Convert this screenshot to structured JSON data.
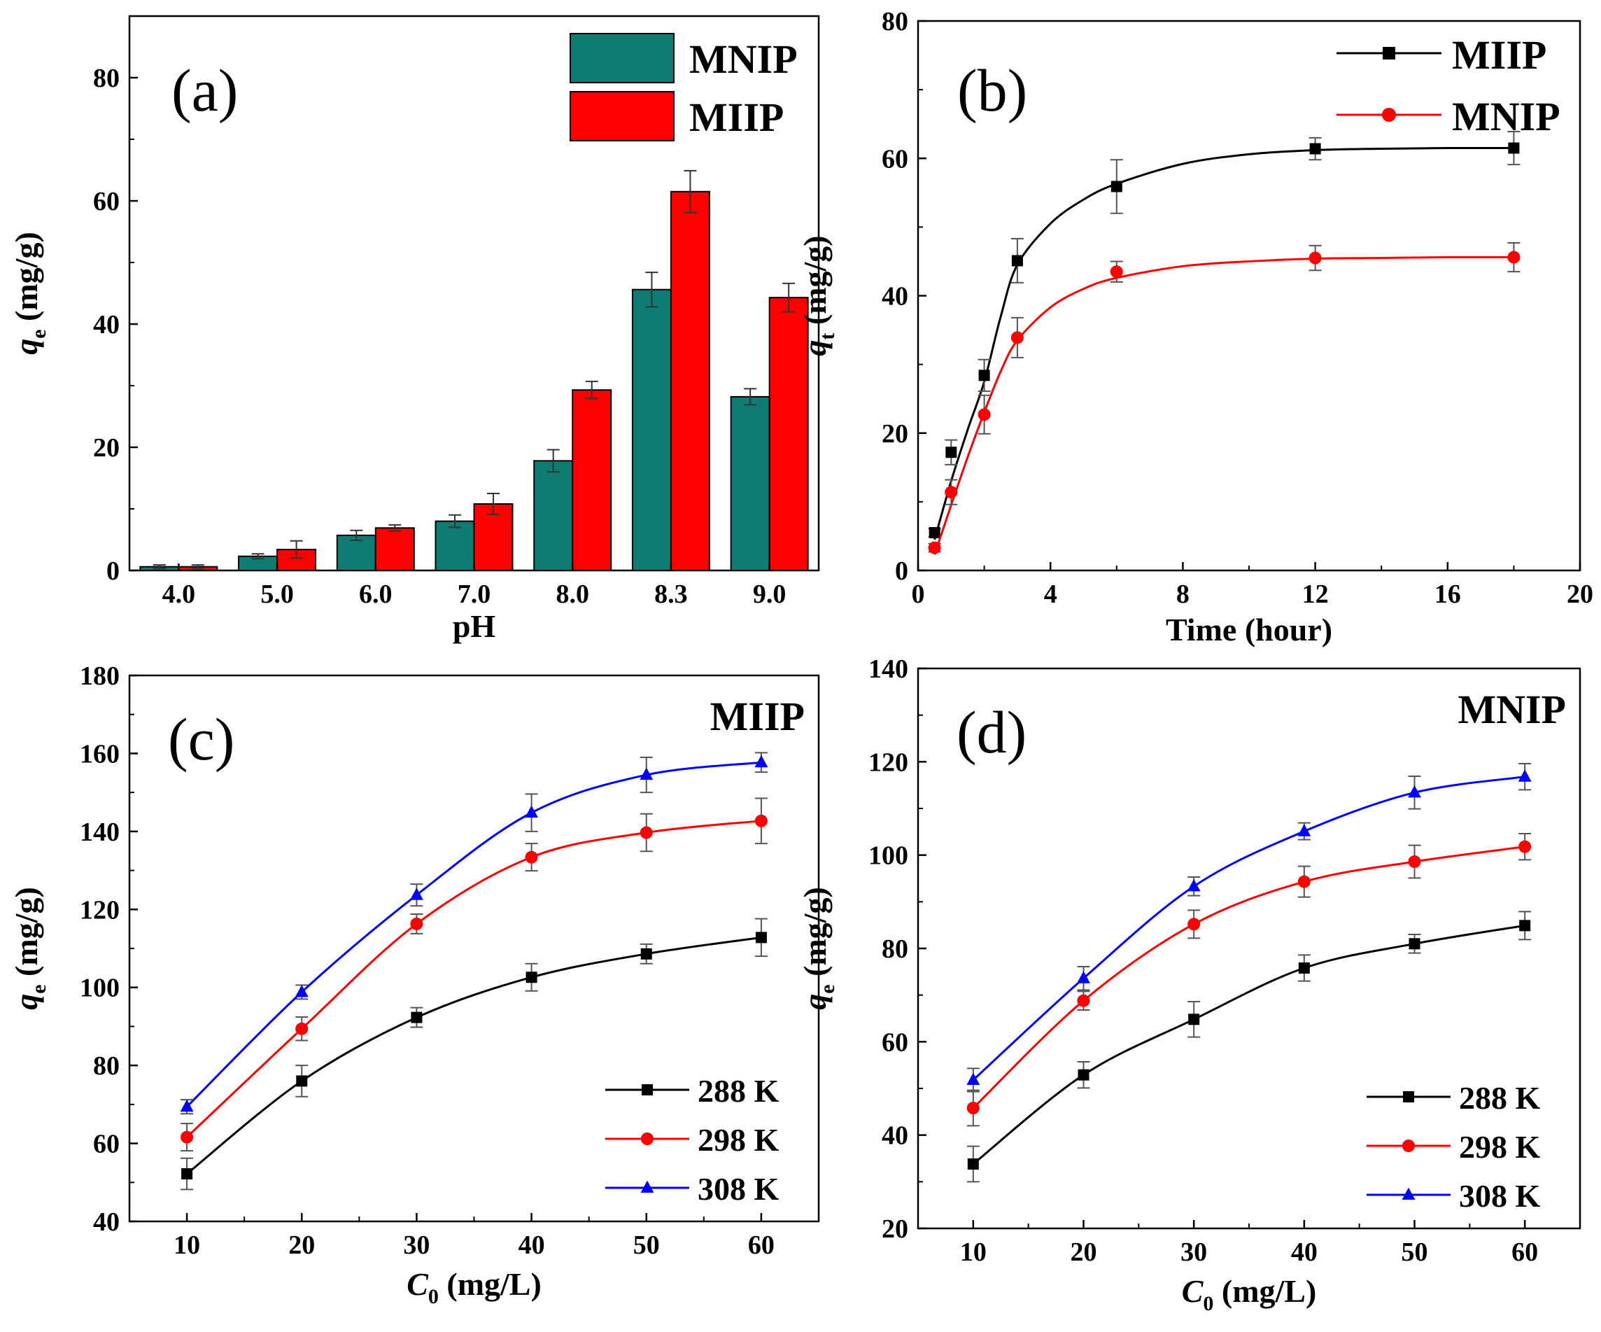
{
  "chart_data": [
    {
      "type": "bar",
      "panel_label": "(a)",
      "xlabel": "pH",
      "ylabel_main": "q",
      "ylabel_sub": "e",
      "ylabel_unit": "(mg/g)",
      "categories": [
        "4.0",
        "5.0",
        "6.0",
        "7.0",
        "8.0",
        "8.3",
        "9.0"
      ],
      "yticks": [
        "0",
        "20",
        "40",
        "60",
        "80"
      ],
      "ylim": [
        0,
        90
      ],
      "legend_position": "top-right",
      "series": [
        {
          "name": "MNIP",
          "color": "#0f7c74",
          "values": [
            0.6,
            2.3,
            5.7,
            8.0,
            17.8,
            45.6,
            28.2
          ],
          "errors": [
            0.3,
            0.4,
            0.8,
            1.0,
            1.8,
            2.8,
            1.3
          ]
        },
        {
          "name": "MIIP",
          "color": "#ff0000",
          "values": [
            0.6,
            3.4,
            6.9,
            10.8,
            29.3,
            61.5,
            44.3
          ],
          "errors": [
            0.3,
            1.4,
            0.5,
            1.7,
            1.4,
            3.4,
            2.3
          ]
        }
      ]
    },
    {
      "type": "line",
      "panel_label": "(b)",
      "xlabel": "Time (hour)",
      "ylabel_main": "q",
      "ylabel_sub": "t",
      "ylabel_unit": "(mg/g)",
      "xlim": [
        0,
        20
      ],
      "ylim": [
        0,
        80
      ],
      "xticks": [
        "0",
        "4",
        "8",
        "12",
        "16",
        "20"
      ],
      "yticks": [
        "0",
        "20",
        "40",
        "60",
        "80"
      ],
      "legend_position": "top-right",
      "series": [
        {
          "name": "MIIP",
          "color": "#000000",
          "marker": "square",
          "x": [
            0.5,
            1,
            2,
            3,
            6,
            12,
            18
          ],
          "y": [
            5.5,
            17.2,
            28.4,
            45.1,
            55.9,
            61.4,
            61.5
          ],
          "errors": [
            0.6,
            1.8,
            2.3,
            3.2,
            3.9,
            1.6,
            2.4
          ],
          "fit": [
            [
              0.5,
              4.5
            ],
            [
              1,
              13
            ],
            [
              1.5,
              20.5
            ],
            [
              2,
              27.5
            ],
            [
              2.5,
              37
            ],
            [
              3,
              44.5
            ],
            [
              4,
              50.5
            ],
            [
              5,
              54
            ],
            [
              6,
              56.3
            ],
            [
              8,
              59.2
            ],
            [
              10,
              60.6
            ],
            [
              12,
              61.2
            ],
            [
              14,
              61.4
            ],
            [
              16,
              61.5
            ],
            [
              18,
              61.5
            ]
          ]
        },
        {
          "name": "MNIP",
          "color": "#ff0000",
          "marker": "circle",
          "x": [
            0.5,
            1,
            2,
            3,
            6,
            12,
            18
          ],
          "y": [
            3.3,
            11.4,
            22.7,
            33.9,
            43.5,
            45.5,
            45.6
          ],
          "errors": [
            0.6,
            1.8,
            2.8,
            2.9,
            1.5,
            1.8,
            2.1
          ],
          "fit": [
            [
              0.5,
              2.3
            ],
            [
              1,
              9.5
            ],
            [
              1.5,
              16.5
            ],
            [
              2,
              23
            ],
            [
              2.5,
              29
            ],
            [
              3,
              33.5
            ],
            [
              4,
              38.3
            ],
            [
              5,
              41
            ],
            [
              6,
              42.6
            ],
            [
              8,
              44.3
            ],
            [
              10,
              45
            ],
            [
              12,
              45.4
            ],
            [
              14,
              45.5
            ],
            [
              16,
              45.6
            ],
            [
              18,
              45.6
            ]
          ]
        }
      ]
    },
    {
      "type": "line",
      "panel_label": "(c)",
      "panel_title": "MIIP",
      "xlabel_main": "C",
      "xlabel_sub": "0",
      "xlabel_unit": "(mg/L)",
      "ylabel_main": "q",
      "ylabel_sub": "e",
      "ylabel_unit": "(mg/g)",
      "xlim": [
        5,
        65
      ],
      "ylim": [
        40,
        180
      ],
      "xticks": [
        "10",
        "20",
        "30",
        "40",
        "50",
        "60"
      ],
      "yticks": [
        "40",
        "60",
        "80",
        "100",
        "120",
        "140",
        "160",
        "180"
      ],
      "legend_position": "bottom-right",
      "series": [
        {
          "name": "288 K",
          "color": "#000000",
          "marker": "square",
          "x": [
            10,
            20,
            30,
            40,
            50,
            60
          ],
          "y": [
            52.2,
            76.0,
            92.3,
            102.6,
            108.6,
            112.8
          ],
          "errors": [
            4.0,
            4.0,
            2.5,
            3.5,
            2.5,
            4.8
          ]
        },
        {
          "name": "298 K",
          "color": "#ff0000",
          "marker": "circle",
          "x": [
            10,
            20,
            30,
            40,
            50,
            60
          ],
          "y": [
            61.6,
            89.4,
            116.3,
            133.4,
            139.7,
            142.7
          ],
          "errors": [
            3.5,
            3.0,
            2.5,
            3.5,
            4.8,
            5.8
          ]
        },
        {
          "name": "308 K",
          "color": "#0000ff",
          "marker": "triangle",
          "x": [
            10,
            20,
            30,
            40,
            50,
            60
          ],
          "y": [
            69.4,
            98.8,
            123.7,
            144.8,
            154.5,
            157.7
          ],
          "errors": [
            1.8,
            1.8,
            2.8,
            4.8,
            4.5,
            2.5
          ]
        }
      ]
    },
    {
      "type": "line",
      "panel_label": "(d)",
      "panel_title": "MNIP",
      "xlabel_main": "C",
      "xlabel_sub": "0",
      "xlabel_unit": "(mg/L)",
      "ylabel_main": "q",
      "ylabel_sub": "e",
      "ylabel_unit": "(mg/g)",
      "xlim": [
        5,
        65
      ],
      "ylim": [
        20,
        140
      ],
      "xticks": [
        "10",
        "20",
        "30",
        "40",
        "50",
        "60"
      ],
      "yticks": [
        "20",
        "40",
        "60",
        "80",
        "100",
        "120",
        "140"
      ],
      "legend_position": "bottom-right",
      "series": [
        {
          "name": "288 K",
          "color": "#000000",
          "marker": "square",
          "x": [
            10,
            20,
            30,
            40,
            50,
            60
          ],
          "y": [
            33.8,
            52.9,
            64.8,
            75.8,
            81.0,
            84.9
          ],
          "errors": [
            3.8,
            2.8,
            3.8,
            2.8,
            2.0,
            3.0
          ]
        },
        {
          "name": "298 K",
          "color": "#ff0000",
          "marker": "circle",
          "x": [
            10,
            20,
            30,
            40,
            50,
            60
          ],
          "y": [
            45.8,
            68.8,
            85.2,
            94.3,
            98.6,
            101.8
          ],
          "errors": [
            3.8,
            2.0,
            3.0,
            3.3,
            3.5,
            2.8
          ]
        },
        {
          "name": "308 K",
          "color": "#0000ff",
          "marker": "triangle",
          "x": [
            10,
            20,
            30,
            40,
            50,
            60
          ],
          "y": [
            51.8,
            73.6,
            93.3,
            105.1,
            113.4,
            116.8
          ],
          "errors": [
            2.5,
            2.5,
            2.0,
            1.8,
            3.5,
            2.8
          ]
        }
      ]
    }
  ]
}
